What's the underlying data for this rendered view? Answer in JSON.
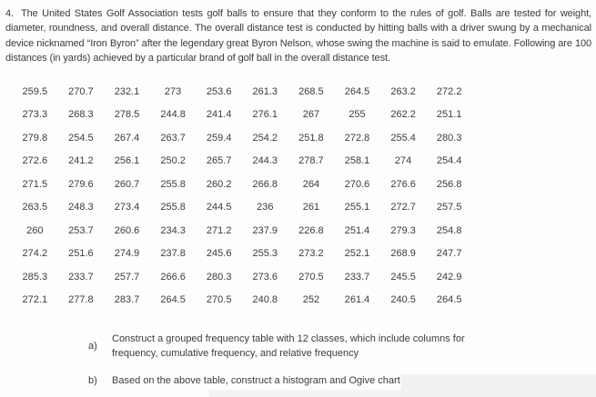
{
  "problem": {
    "number": "4.",
    "statement": "The United States Golf Association tests golf balls to ensure that they conform to the rules of golf. Balls are tested for weight, diameter, roundness, and overall distance. The overall distance test is conducted by hitting balls with a driver swung by a mechanical device nicknamed “Iron Byron” after the legendary great Byron Nelson, whose swing the machine is said to emulate. Following are 100 distances (in yards) achieved by a particular brand of golf ball in the overall distance test."
  },
  "distances_table": {
    "rows": [
      [
        "259.5",
        "270.7",
        "232.1",
        "273",
        "253.6",
        "261.3",
        "268.5",
        "264.5",
        "263.2",
        "272.2"
      ],
      [
        "273.3",
        "268.3",
        "278.5",
        "244.8",
        "241.4",
        "276.1",
        "267",
        "255",
        "262.2",
        "251.1"
      ],
      [
        "279.8",
        "254.5",
        "267.4",
        "263.7",
        "259.4",
        "254.2",
        "251.8",
        "272.8",
        "255.4",
        "280.3"
      ],
      [
        "272.6",
        "241.2",
        "256.1",
        "250.2",
        "265.7",
        "244.3",
        "278.7",
        "258.1",
        "274",
        "254.4"
      ],
      [
        "271.5",
        "279.6",
        "260.7",
        "255.8",
        "260.2",
        "266.8",
        "264",
        "270.6",
        "276.6",
        "256.8"
      ],
      [
        "263.5",
        "248.3",
        "273.4",
        "255.8",
        "244.5",
        "236",
        "261",
        "255.1",
        "272.7",
        "257.5"
      ],
      [
        "260",
        "253.7",
        "260.6",
        "234.3",
        "271.2",
        "237.9",
        "226.8",
        "251.4",
        "279.3",
        "254.8"
      ],
      [
        "274.2",
        "251.6",
        "274.9",
        "237.8",
        "245.6",
        "255.3",
        "273.2",
        "252.1",
        "268.9",
        "247.7"
      ],
      [
        "285.3",
        "233.7",
        "257.7",
        "266.6",
        "280.3",
        "273.6",
        "270.5",
        "233.7",
        "245.5",
        "242.9"
      ],
      [
        "272.1",
        "277.8",
        "283.7",
        "264.5",
        "270.5",
        "240.8",
        "252",
        "261.4",
        "240.5",
        "264.5"
      ]
    ]
  },
  "questions": [
    {
      "label": "a)",
      "text": "Construct a grouped frequency table with 12 classes, which include columns for frequency, cumulative frequency, and relative frequency"
    },
    {
      "label": "b)",
      "text": "Based on the above table, construct a histogram and Ogive chart"
    }
  ],
  "colors": {
    "text": "#3c3c3c",
    "background": "#fdfdfd"
  }
}
